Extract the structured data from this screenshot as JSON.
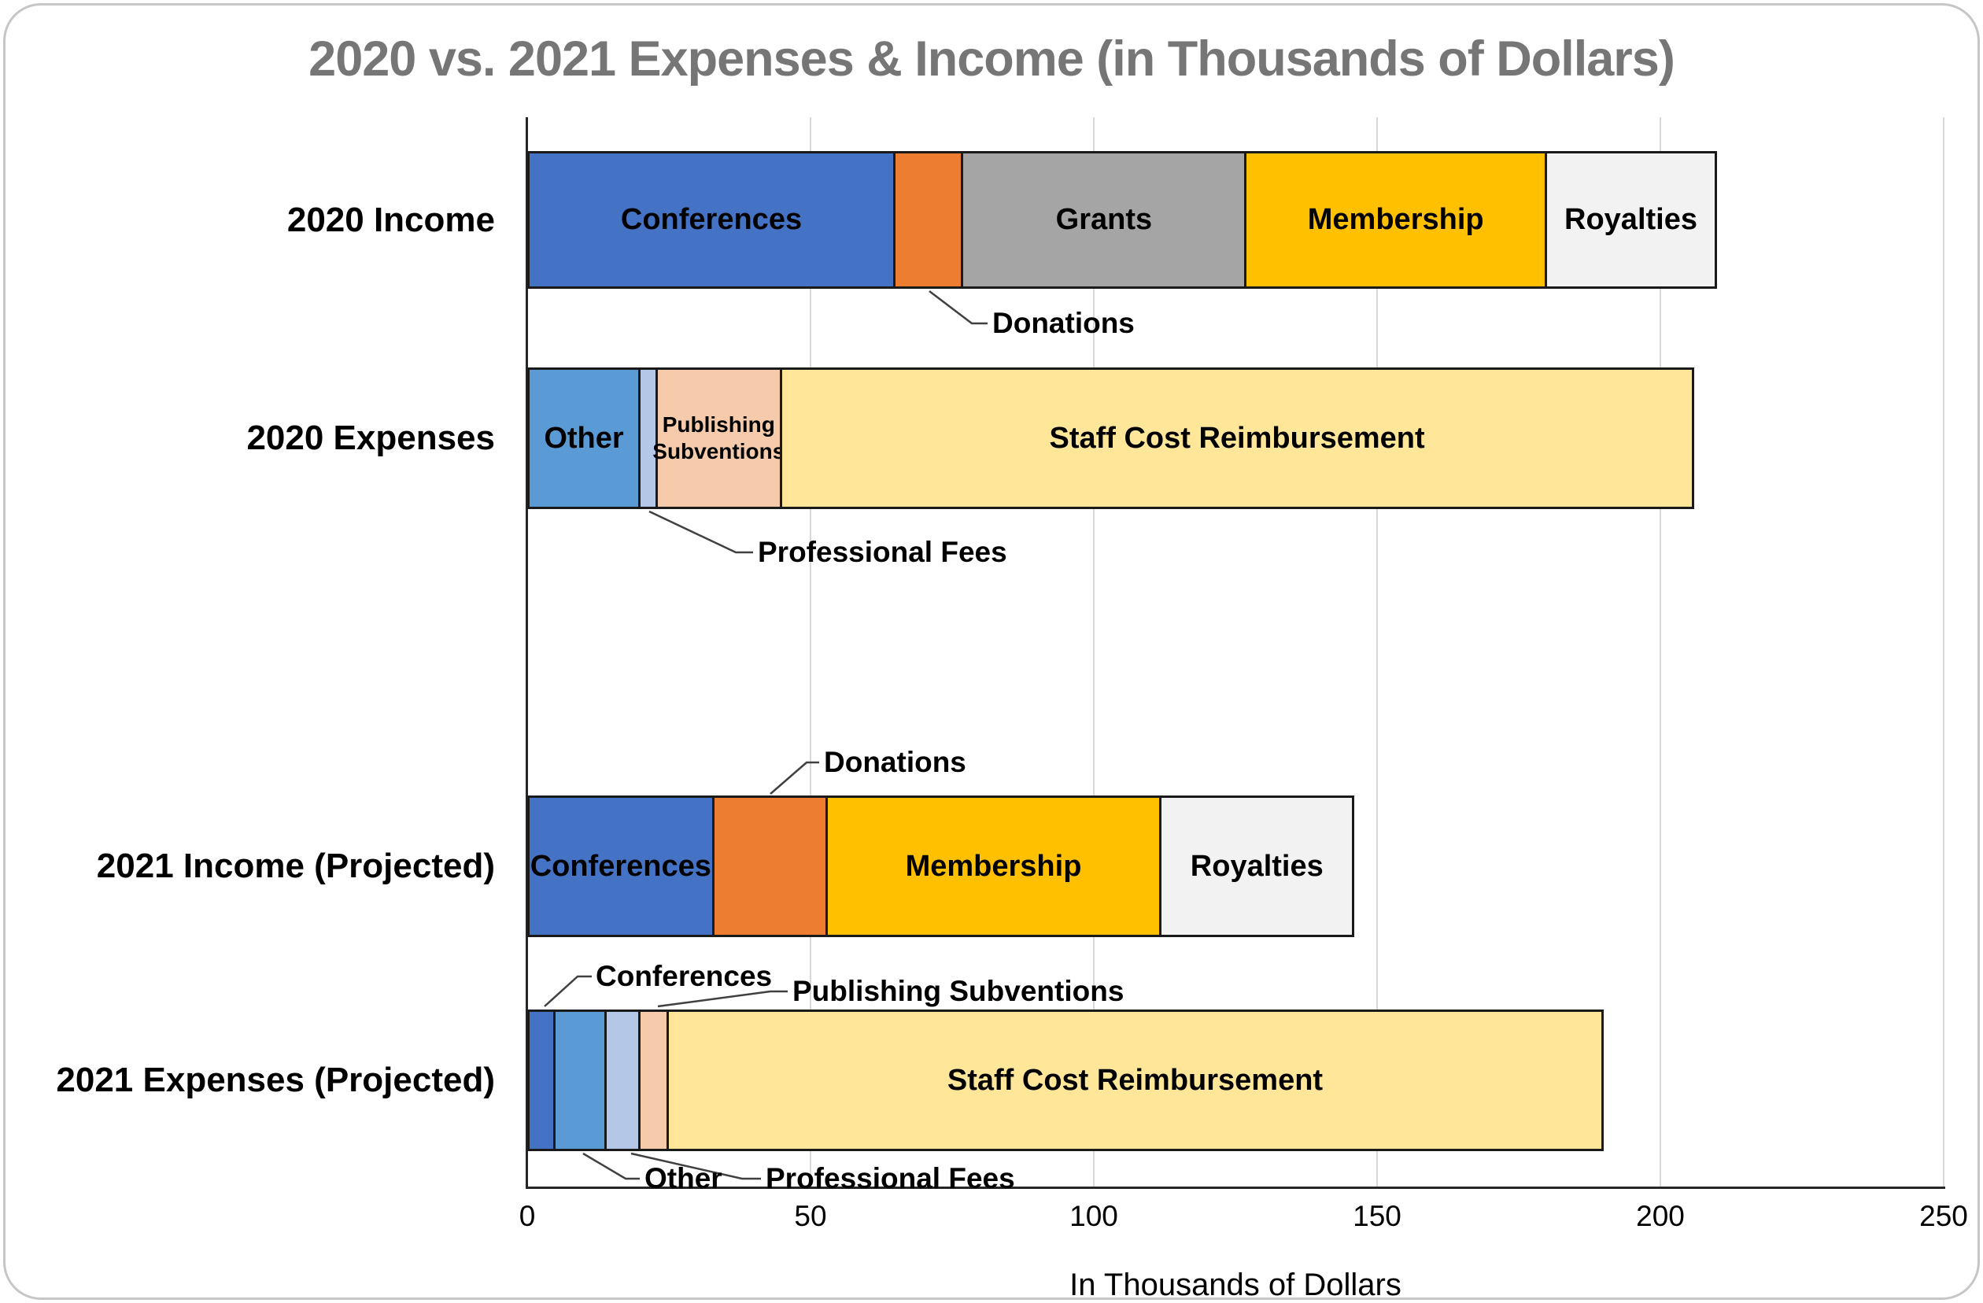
{
  "chart_data": {
    "type": "bar",
    "orientation": "horizontal",
    "stacked": true,
    "title": "2020 vs. 2021 Expenses & Income (in Thousands of Dollars)",
    "xlabel": "In Thousands of Dollars",
    "x_ticks": [
      0,
      50,
      100,
      150,
      200,
      250
    ],
    "xlim": [
      0,
      250
    ],
    "grid": true,
    "legend": "none (segments labeled inline or via callouts)",
    "style": {
      "title_color": "#767676",
      "grid_color": "#d9d9d9",
      "axis_color": "#262626",
      "segment_border_color": "#1a1a1a",
      "frame_border_color": "#c6c6c6",
      "callout_line_color": "#404040"
    },
    "rows": [
      {
        "category": "2020 Income",
        "total": 210,
        "segments": [
          {
            "label": "Conferences",
            "value": 65,
            "color": "#4472C4",
            "label_inside": true
          },
          {
            "label": "Donations",
            "value": 12,
            "color": "#ED7D31",
            "label_inside": false
          },
          {
            "label": "Grants",
            "value": 50,
            "color": "#A5A5A5",
            "label_inside": true
          },
          {
            "label": "Membership",
            "value": 53,
            "color": "#FFC000",
            "label_inside": true
          },
          {
            "label": "Royalties",
            "value": 30,
            "color": "#F2F2F2",
            "label_inside": true
          }
        ]
      },
      {
        "category": "2020 Expenses",
        "total": 206,
        "segments": [
          {
            "label": "Other",
            "value": 20,
            "color": "#5B9BD5",
            "label_inside": true
          },
          {
            "label": "Professional Fees",
            "value": 3,
            "color": "#B4C7E7",
            "label_inside": false
          },
          {
            "label": "Publishing Subventions",
            "value": 22,
            "color": "#F5CBAC",
            "label_inside": true,
            "two_line": true
          },
          {
            "label": "Staff Cost Reimbursement",
            "value": 161,
            "color": "#FFE699",
            "label_inside": true
          }
        ]
      },
      {
        "category": "2021 Income (Projected)",
        "total": 146,
        "segments": [
          {
            "label": "Conferences",
            "value": 33,
            "color": "#4472C4",
            "label_inside": true
          },
          {
            "label": "Donations",
            "value": 20,
            "color": "#ED7D31",
            "label_inside": false
          },
          {
            "label": "Membership",
            "value": 59,
            "color": "#FFC000",
            "label_inside": true
          },
          {
            "label": "Royalties",
            "value": 34,
            "color": "#F2F2F2",
            "label_inside": true
          }
        ]
      },
      {
        "category": "2021 Expenses (Projected)",
        "total": 190,
        "segments": [
          {
            "label": "Conferences",
            "value": 5,
            "color": "#4472C4",
            "label_inside": false
          },
          {
            "label": "Other",
            "value": 9,
            "color": "#5B9BD5",
            "label_inside": false
          },
          {
            "label": "Professional Fees",
            "value": 6,
            "color": "#B4C7E7",
            "label_inside": false
          },
          {
            "label": "Publishing Subventions",
            "value": 5,
            "color": "#F5CBAC",
            "label_inside": false
          },
          {
            "label": "Staff Cost Reimbursement",
            "value": 165,
            "color": "#FFE699",
            "label_inside": true
          }
        ]
      }
    ],
    "callouts": [
      {
        "label": "Donations",
        "refers_to": "2020 Income / Donations"
      },
      {
        "label": "Professional Fees",
        "refers_to": "2020 Expenses / Professional Fees"
      },
      {
        "label": "Donations",
        "refers_to": "2021 Income (Projected) / Donations"
      },
      {
        "label": "Conferences",
        "refers_to": "2021 Expenses (Projected) / Conferences"
      },
      {
        "label": "Publishing Subventions",
        "refers_to": "2021 Expenses (Projected) / Publishing Subventions"
      },
      {
        "label": "Other",
        "refers_to": "2021 Expenses (Projected) / Other"
      },
      {
        "label": "Professional Fees",
        "refers_to": "2021 Expenses (Projected) / Professional Fees"
      }
    ]
  }
}
